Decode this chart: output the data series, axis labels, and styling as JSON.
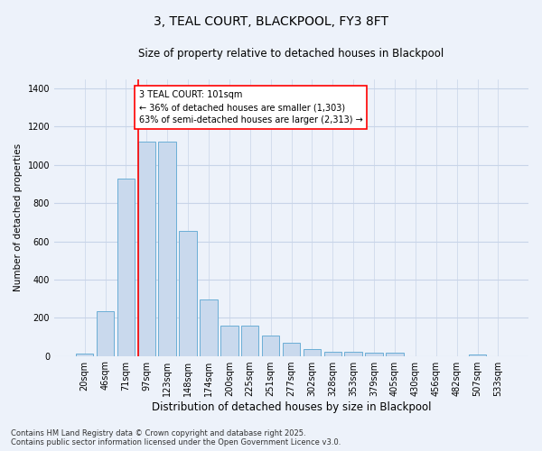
{
  "title": "3, TEAL COURT, BLACKPOOL, FY3 8FT",
  "subtitle": "Size of property relative to detached houses in Blackpool",
  "xlabel": "Distribution of detached houses by size in Blackpool",
  "ylabel": "Number of detached properties",
  "bar_labels": [
    "20sqm",
    "46sqm",
    "71sqm",
    "97sqm",
    "123sqm",
    "148sqm",
    "174sqm",
    "200sqm",
    "225sqm",
    "251sqm",
    "277sqm",
    "302sqm",
    "328sqm",
    "353sqm",
    "379sqm",
    "405sqm",
    "430sqm",
    "456sqm",
    "482sqm",
    "507sqm",
    "533sqm"
  ],
  "bar_values": [
    13,
    233,
    930,
    1120,
    1120,
    655,
    297,
    158,
    157,
    107,
    68,
    37,
    22,
    22,
    18,
    15,
    0,
    0,
    0,
    8,
    0
  ],
  "bar_color": "#c9d9ed",
  "bar_edge_color": "#6baed6",
  "grid_color": "#c8d4e8",
  "bg_color": "#edf2fa",
  "red_line_index": 3,
  "annotation_text": "3 TEAL COURT: 101sqm\n← 36% of detached houses are smaller (1,303)\n63% of semi-detached houses are larger (2,313) →",
  "ylim": [
    0,
    1450
  ],
  "yticks": [
    0,
    200,
    400,
    600,
    800,
    1000,
    1200,
    1400
  ],
  "footer_text": "Contains HM Land Registry data © Crown copyright and database right 2025.\nContains public sector information licensed under the Open Government Licence v3.0.",
  "title_fontsize": 10,
  "subtitle_fontsize": 8.5,
  "xlabel_fontsize": 8.5,
  "ylabel_fontsize": 7.5,
  "tick_fontsize": 7,
  "annotation_fontsize": 7,
  "footer_fontsize": 6
}
